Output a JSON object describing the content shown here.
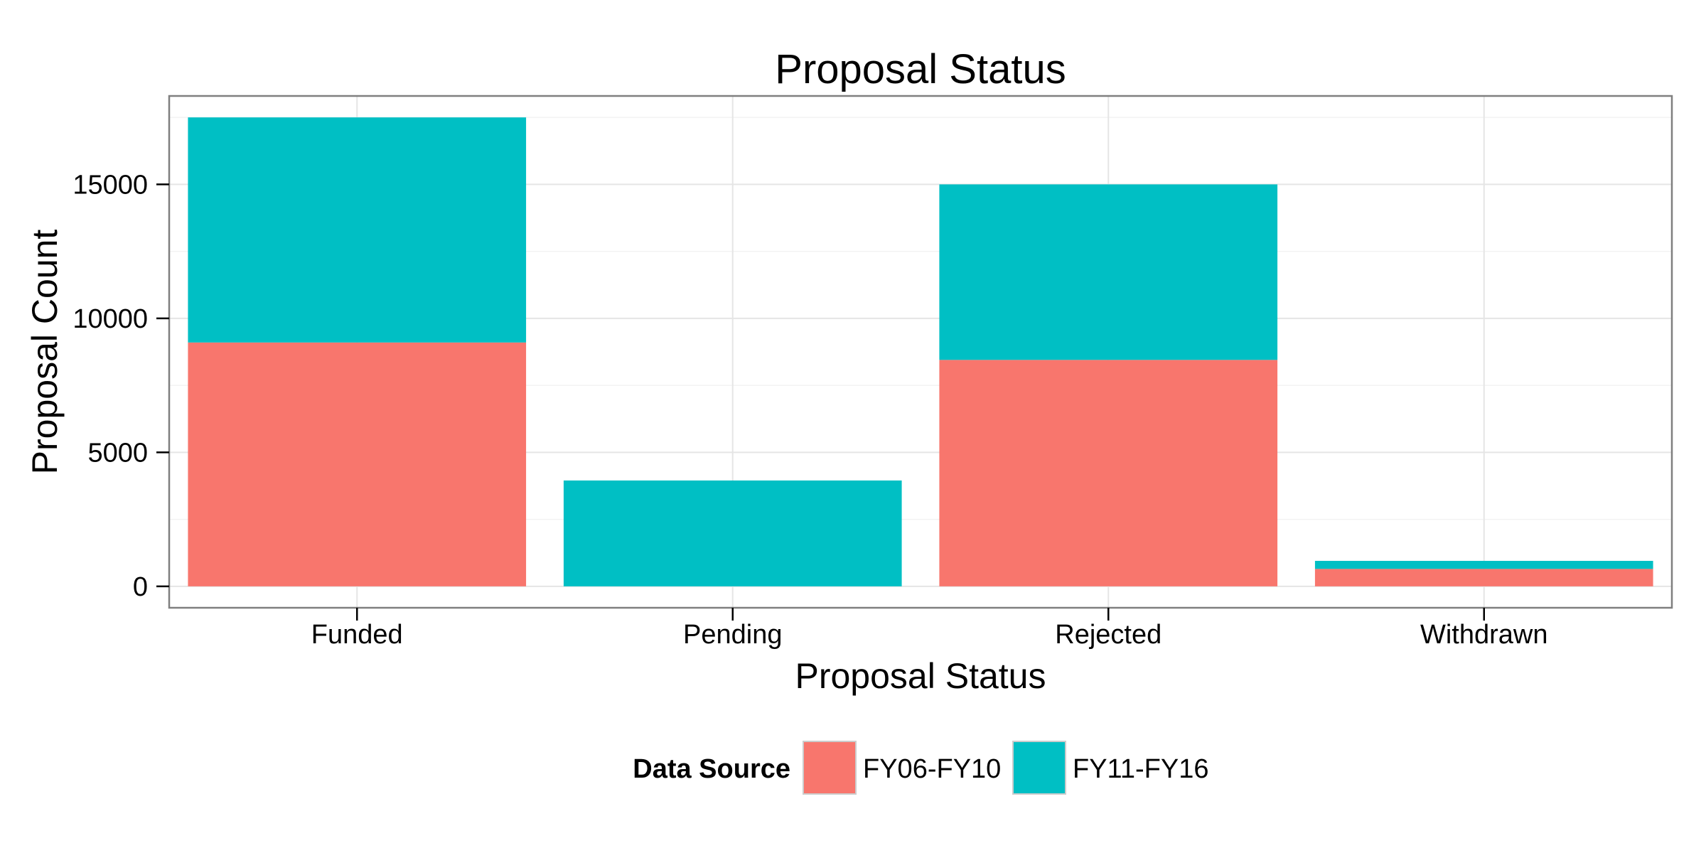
{
  "chart_data": {
    "type": "bar",
    "stacked": true,
    "title": "Proposal Status",
    "xlabel": "Proposal Status",
    "ylabel": "Proposal Count",
    "categories": [
      "Funded",
      "Pending",
      "Rejected",
      "Withdrawn"
    ],
    "series": [
      {
        "name": "FY06-FY10",
        "color": "#F8766D",
        "values": [
          9100,
          0,
          8450,
          650
        ]
      },
      {
        "name": "FY11-FY16",
        "color": "#00BFC4",
        "values": [
          8400,
          3950,
          6550,
          300
        ]
      }
    ],
    "ylim": [
      -800,
      18300
    ],
    "yticks": [
      0,
      5000,
      10000,
      15000
    ],
    "grid": true,
    "legend": {
      "title": "Data Source",
      "position": "bottom"
    }
  }
}
